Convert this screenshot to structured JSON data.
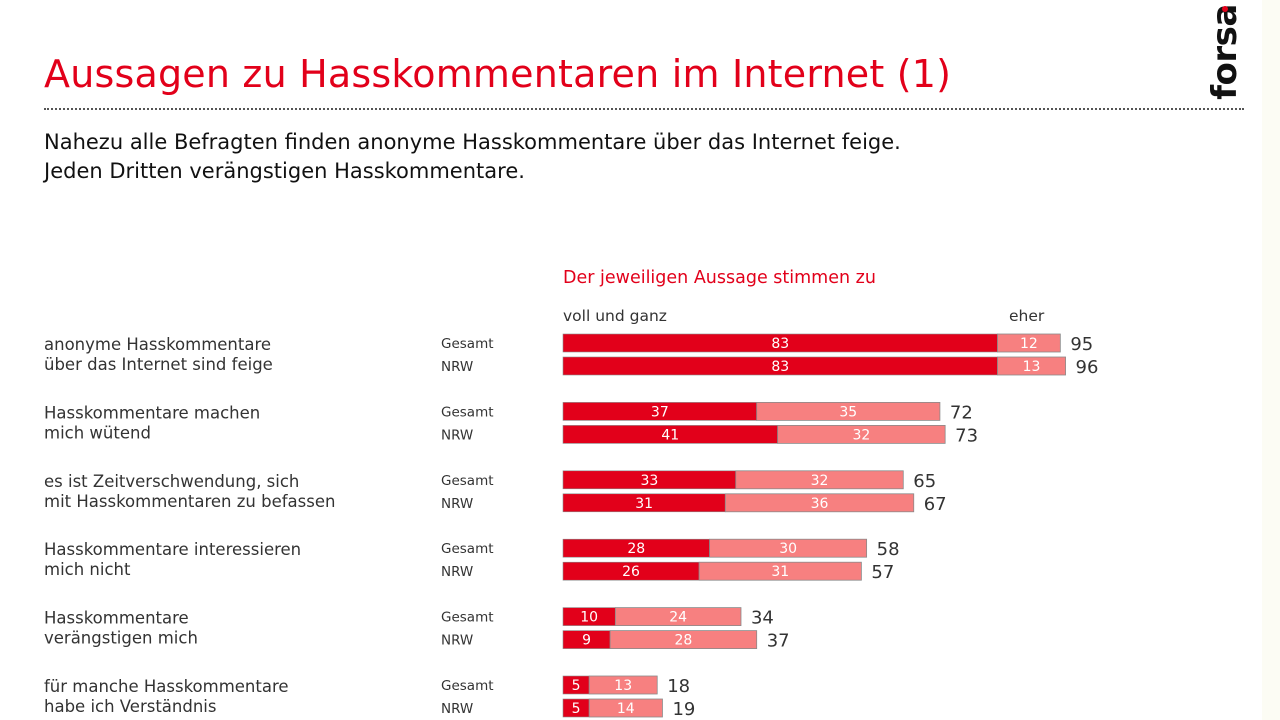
{
  "header": {
    "title": "Aussagen zu Hasskommentaren im Internet (1)",
    "logo": "forsa",
    "subtitle_lines": [
      "Nahezu alle Befragten finden anonyme Hasskommentare über das Internet feige.",
      "Jeden Dritten verängstigen Hasskommentare."
    ]
  },
  "colors": {
    "accent": "#e2001a",
    "full_agree": "#e2001a",
    "rather_agree": "#f78080",
    "bar_border": "#8a8a8a"
  },
  "chart_data": {
    "type": "bar",
    "orientation": "horizontal",
    "stacked": true,
    "title": "Der jeweiligen Aussage stimmen zu",
    "unit": "percent",
    "xlim": [
      0,
      100
    ],
    "legend": [
      "voll und ganz",
      "eher"
    ],
    "legend_placement": "top",
    "groups": [
      "Gesamt",
      "NRW"
    ],
    "categories": [
      {
        "label_lines": [
          "anonyme Hasskommentare",
          "über das Internet sind feige"
        ],
        "rows": [
          {
            "group": "Gesamt",
            "full": 83,
            "rather": 12,
            "total": 95
          },
          {
            "group": "NRW",
            "full": 83,
            "rather": 13,
            "total": 96
          }
        ]
      },
      {
        "label_lines": [
          "Hasskommentare machen",
          "mich wütend"
        ],
        "rows": [
          {
            "group": "Gesamt",
            "full": 37,
            "rather": 35,
            "total": 72
          },
          {
            "group": "NRW",
            "full": 41,
            "rather": 32,
            "total": 73
          }
        ]
      },
      {
        "label_lines": [
          "es ist Zeitverschwendung, sich",
          "mit Hasskommentaren zu befassen"
        ],
        "rows": [
          {
            "group": "Gesamt",
            "full": 33,
            "rather": 32,
            "total": 65
          },
          {
            "group": "NRW",
            "full": 31,
            "rather": 36,
            "total": 67
          }
        ]
      },
      {
        "label_lines": [
          "Hasskommentare interessieren",
          "mich nicht"
        ],
        "rows": [
          {
            "group": "Gesamt",
            "full": 28,
            "rather": 30,
            "total": 58
          },
          {
            "group": "NRW",
            "full": 26,
            "rather": 31,
            "total": 57
          }
        ]
      },
      {
        "label_lines": [
          "Hasskommentare",
          "verängstigen mich"
        ],
        "rows": [
          {
            "group": "Gesamt",
            "full": 10,
            "rather": 24,
            "total": 34
          },
          {
            "group": "NRW",
            "full": 9,
            "rather": 28,
            "total": 37
          }
        ]
      },
      {
        "label_lines": [
          "für manche Hasskommentare",
          "habe ich Verständnis"
        ],
        "rows": [
          {
            "group": "Gesamt",
            "full": 5,
            "rather": 13,
            "total": 18
          },
          {
            "group": "NRW",
            "full": 5,
            "rather": 14,
            "total": 19
          }
        ]
      }
    ]
  }
}
